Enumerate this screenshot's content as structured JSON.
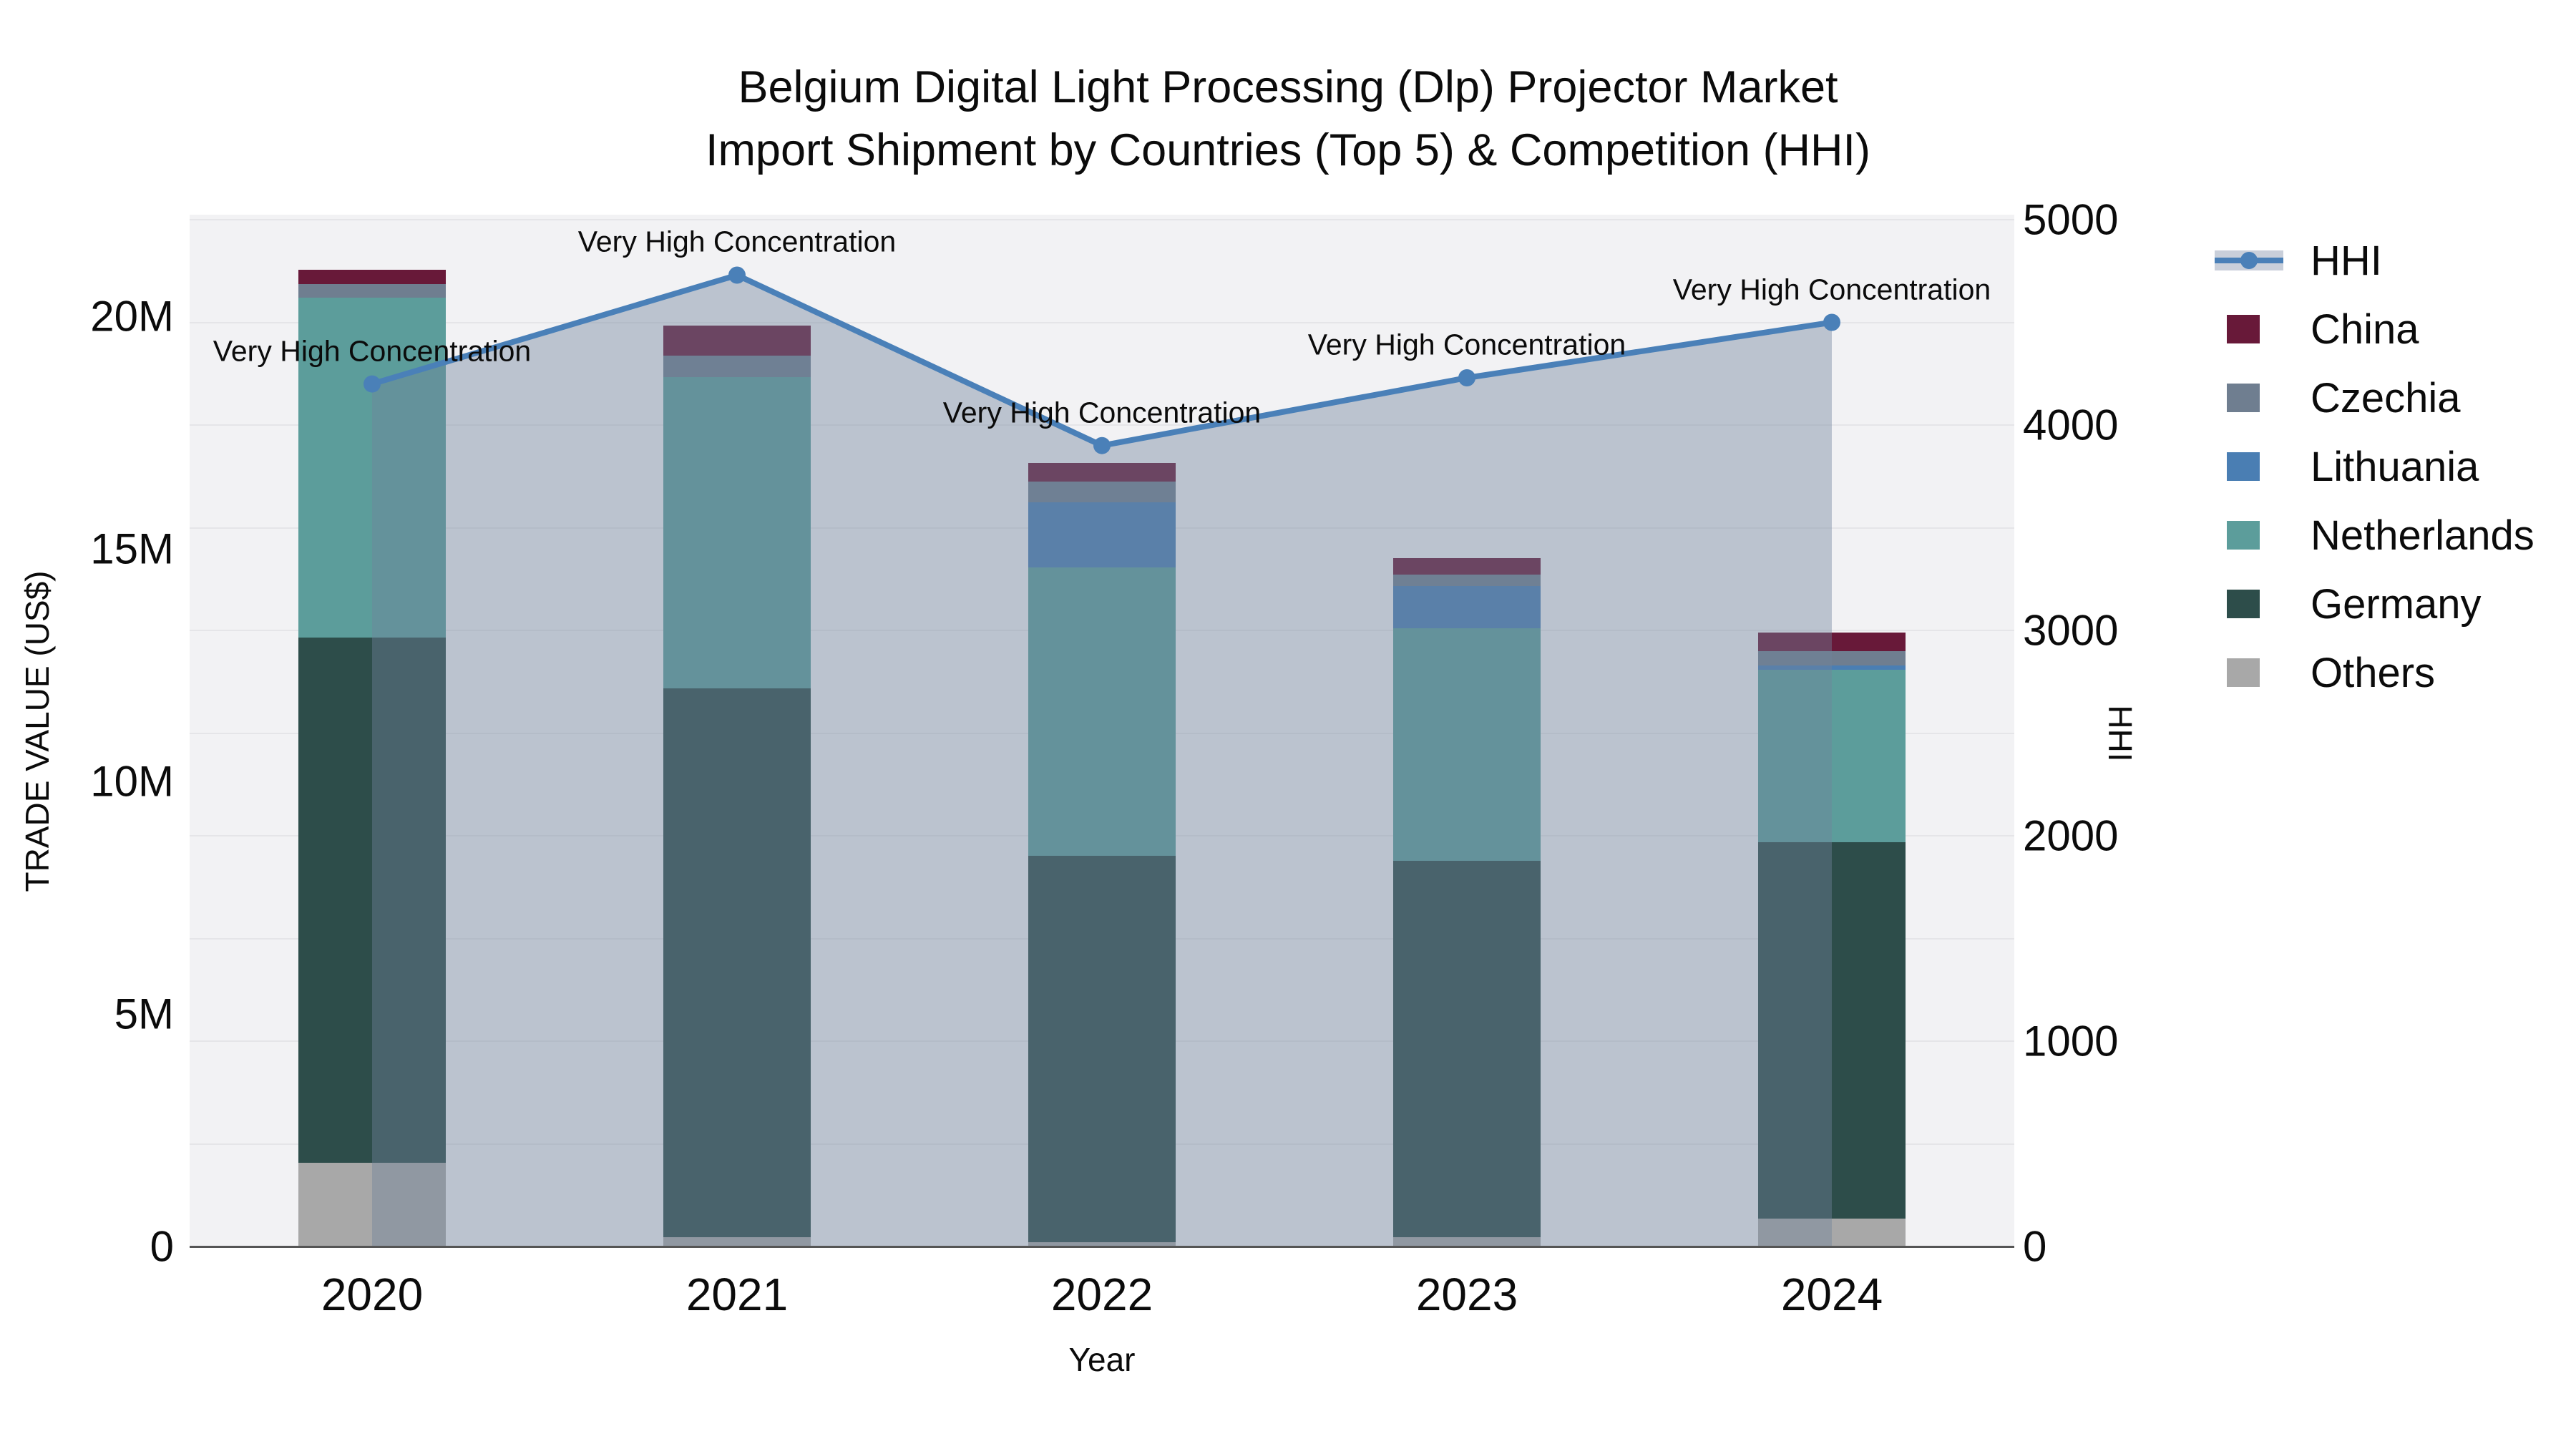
{
  "title": {
    "line1": "Belgium Digital Light Processing (Dlp) Projector Market",
    "line2": "Import Shipment by Countries (Top 5) & Competition (HHI)"
  },
  "axes": {
    "left": {
      "title": "TRADE VALUE (US$)",
      "ticks": [
        {
          "label": "0",
          "value": 0
        },
        {
          "label": "5M",
          "value": 5
        },
        {
          "label": "10M",
          "value": 10
        },
        {
          "label": "15M",
          "value": 15
        },
        {
          "label": "20M",
          "value": 20
        }
      ]
    },
    "right": {
      "title": "HHI",
      "ticks": [
        {
          "label": "0",
          "value": 0
        },
        {
          "label": "1000",
          "value": 1000
        },
        {
          "label": "2000",
          "value": 2000
        },
        {
          "label": "3000",
          "value": 3000
        },
        {
          "label": "4000",
          "value": 4000
        },
        {
          "label": "5000",
          "value": 5000
        }
      ]
    },
    "x": {
      "title": "Year",
      "ticks": [
        "2020",
        "2021",
        "2022",
        "2023",
        "2024"
      ]
    }
  },
  "legend": {
    "items": [
      {
        "label": "HHI",
        "type": "line",
        "color": "#4A80B8",
        "band_color": "#C9CFDA"
      },
      {
        "label": "China",
        "type": "square",
        "color": "#681939"
      },
      {
        "label": "Czechia",
        "type": "square",
        "color": "#6F7E90"
      },
      {
        "label": "Lithuania",
        "type": "square",
        "color": "#4A7EB3"
      },
      {
        "label": "Netherlands",
        "type": "square",
        "color": "#5C9D9B"
      },
      {
        "label": "Germany",
        "type": "square",
        "color": "#2D4D4A"
      },
      {
        "label": "Others",
        "type": "square",
        "color": "#A8A8A8"
      }
    ]
  },
  "chart_data": {
    "type": "bar",
    "subtype": "stacked-bars-with-hhi-line-overlay",
    "title": "Belgium Digital Light Processing (Dlp) Projector Market Import Shipment by Countries (Top 5) & Competition (HHI)",
    "categories": [
      "2020",
      "2021",
      "2022",
      "2023",
      "2024"
    ],
    "bar_unit": "Trade value, millions of US$",
    "series": [
      {
        "name": "Others",
        "color": "#A8A8A8",
        "values": [
          1.8,
          0.2,
          0.1,
          0.2,
          0.6
        ]
      },
      {
        "name": "Germany",
        "color": "#2D4D4A",
        "values": [
          11.3,
          11.8,
          8.3,
          8.1,
          8.1
        ]
      },
      {
        "name": "Netherlands",
        "color": "#5C9D9B",
        "values": [
          7.3,
          6.7,
          6.2,
          5.0,
          3.7
        ]
      },
      {
        "name": "Lithuania",
        "color": "#4A7EB3",
        "values": [
          0,
          0,
          1.4,
          0.9,
          0.1
        ]
      },
      {
        "name": "Czechia",
        "color": "#6F7E90",
        "values": [
          0.3,
          0.45,
          0.45,
          0.25,
          0.3
        ]
      },
      {
        "name": "China",
        "color": "#681939",
        "values": [
          0.3,
          0.65,
          0.4,
          0.35,
          0.4
        ]
      }
    ],
    "line_series": {
      "name": "HHI",
      "axis": "right",
      "color": "#4A80B8",
      "area_fill": "rgba(112,130,155,0.42)",
      "values": [
        4200,
        4730,
        3900,
        4230,
        4500
      ]
    },
    "annotations": [
      "Very High Concentration",
      "Very High Concentration",
      "Very High Concentration",
      "Very High Concentration",
      "Very High Concentration"
    ],
    "xlabel": "Year",
    "ylabel_left": "TRADE VALUE (US$)",
    "ylabel_right": "HHI",
    "ylim_left": [
      0,
      22.2
    ],
    "ylim_right": [
      0,
      5000
    ],
    "grid": "horizontal gridlines every 500 HHI units",
    "legend_position": "right"
  }
}
